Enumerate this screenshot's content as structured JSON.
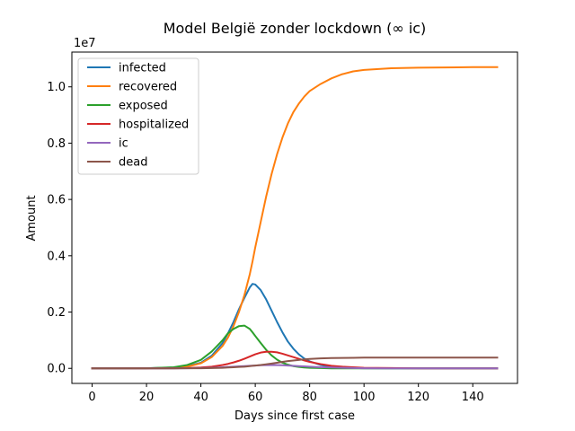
{
  "chart_data": {
    "type": "line",
    "title": "Model België zonder lockdown (∞ ic)",
    "xlabel": "Days since first case",
    "ylabel": "Amount",
    "y_offset_label": "1e7",
    "xlim": [
      -7.45,
      156.45
    ],
    "ylim": [
      -0.0535,
      1.1235
    ],
    "xticks": [
      0,
      20,
      40,
      60,
      80,
      100,
      120,
      140
    ],
    "xtick_labels": [
      "0",
      "20",
      "40",
      "60",
      "80",
      "100",
      "120",
      "140"
    ],
    "yticks": [
      0.0,
      0.2,
      0.4,
      0.6,
      0.8,
      1.0
    ],
    "ytick_labels": [
      "0.0",
      "0.2",
      "0.4",
      "0.6",
      "0.8",
      "1.0"
    ],
    "grid": false,
    "legend_position": "top-left",
    "x": [
      0,
      10,
      20,
      30,
      35,
      40,
      44,
      48,
      50,
      52,
      54,
      56,
      58,
      59,
      60,
      62,
      64,
      66,
      68,
      70,
      72,
      74,
      76,
      78,
      80,
      84,
      88,
      92,
      96,
      100,
      110,
      120,
      130,
      140,
      149
    ],
    "series": [
      {
        "name": "infected",
        "color": "#1f77b4",
        "values": [
          0,
          0,
          0.0005,
          0.003,
          0.008,
          0.02,
          0.045,
          0.09,
          0.125,
          0.165,
          0.21,
          0.25,
          0.288,
          0.3,
          0.298,
          0.278,
          0.245,
          0.205,
          0.165,
          0.128,
          0.095,
          0.07,
          0.05,
          0.035,
          0.025,
          0.012,
          0.006,
          0.003,
          0.001,
          0.0005,
          0,
          0,
          0,
          0,
          0
        ]
      },
      {
        "name": "recovered",
        "color": "#ff7f0e",
        "values": [
          0,
          0,
          0.0003,
          0.002,
          0.006,
          0.018,
          0.04,
          0.08,
          0.11,
          0.15,
          0.2,
          0.26,
          0.335,
          0.38,
          0.43,
          0.52,
          0.61,
          0.69,
          0.76,
          0.82,
          0.87,
          0.91,
          0.94,
          0.965,
          0.985,
          1.01,
          1.03,
          1.045,
          1.055,
          1.06,
          1.066,
          1.068,
          1.069,
          1.07,
          1.07
        ]
      },
      {
        "name": "exposed",
        "color": "#2ca02c",
        "values": [
          0,
          0,
          0.0005,
          0.004,
          0.012,
          0.03,
          0.06,
          0.1,
          0.125,
          0.14,
          0.15,
          0.152,
          0.14,
          0.128,
          0.115,
          0.09,
          0.066,
          0.046,
          0.031,
          0.02,
          0.013,
          0.008,
          0.005,
          0.003,
          0.002,
          0.001,
          0,
          0,
          0,
          0,
          0,
          0,
          0,
          0,
          0
        ]
      },
      {
        "name": "hospitalized",
        "color": "#d62728",
        "values": [
          0,
          0,
          0,
          0.0005,
          0.001,
          0.003,
          0.006,
          0.012,
          0.016,
          0.021,
          0.027,
          0.034,
          0.042,
          0.046,
          0.05,
          0.056,
          0.059,
          0.059,
          0.057,
          0.052,
          0.046,
          0.04,
          0.034,
          0.028,
          0.023,
          0.015,
          0.009,
          0.006,
          0.004,
          0.002,
          0.001,
          0,
          0,
          0,
          0
        ]
      },
      {
        "name": "ic",
        "color": "#9467bd",
        "values": [
          0,
          0,
          0,
          0,
          0.0003,
          0.001,
          0.002,
          0.004,
          0.005,
          0.006,
          0.007,
          0.008,
          0.009,
          0.0095,
          0.01,
          0.011,
          0.0115,
          0.012,
          0.0115,
          0.011,
          0.01,
          0.009,
          0.008,
          0.007,
          0.006,
          0.004,
          0.003,
          0.002,
          0.001,
          0.0005,
          0,
          0,
          0,
          0,
          0
        ]
      },
      {
        "name": "dead",
        "color": "#8c564b",
        "values": [
          0,
          0,
          0,
          0,
          0.0002,
          0.0005,
          0.001,
          0.002,
          0.003,
          0.004,
          0.005,
          0.006,
          0.008,
          0.009,
          0.01,
          0.012,
          0.0145,
          0.017,
          0.02,
          0.023,
          0.026,
          0.028,
          0.03,
          0.032,
          0.0335,
          0.0355,
          0.0365,
          0.037,
          0.0375,
          0.038,
          0.038,
          0.038,
          0.038,
          0.038,
          0.038
        ]
      }
    ]
  }
}
